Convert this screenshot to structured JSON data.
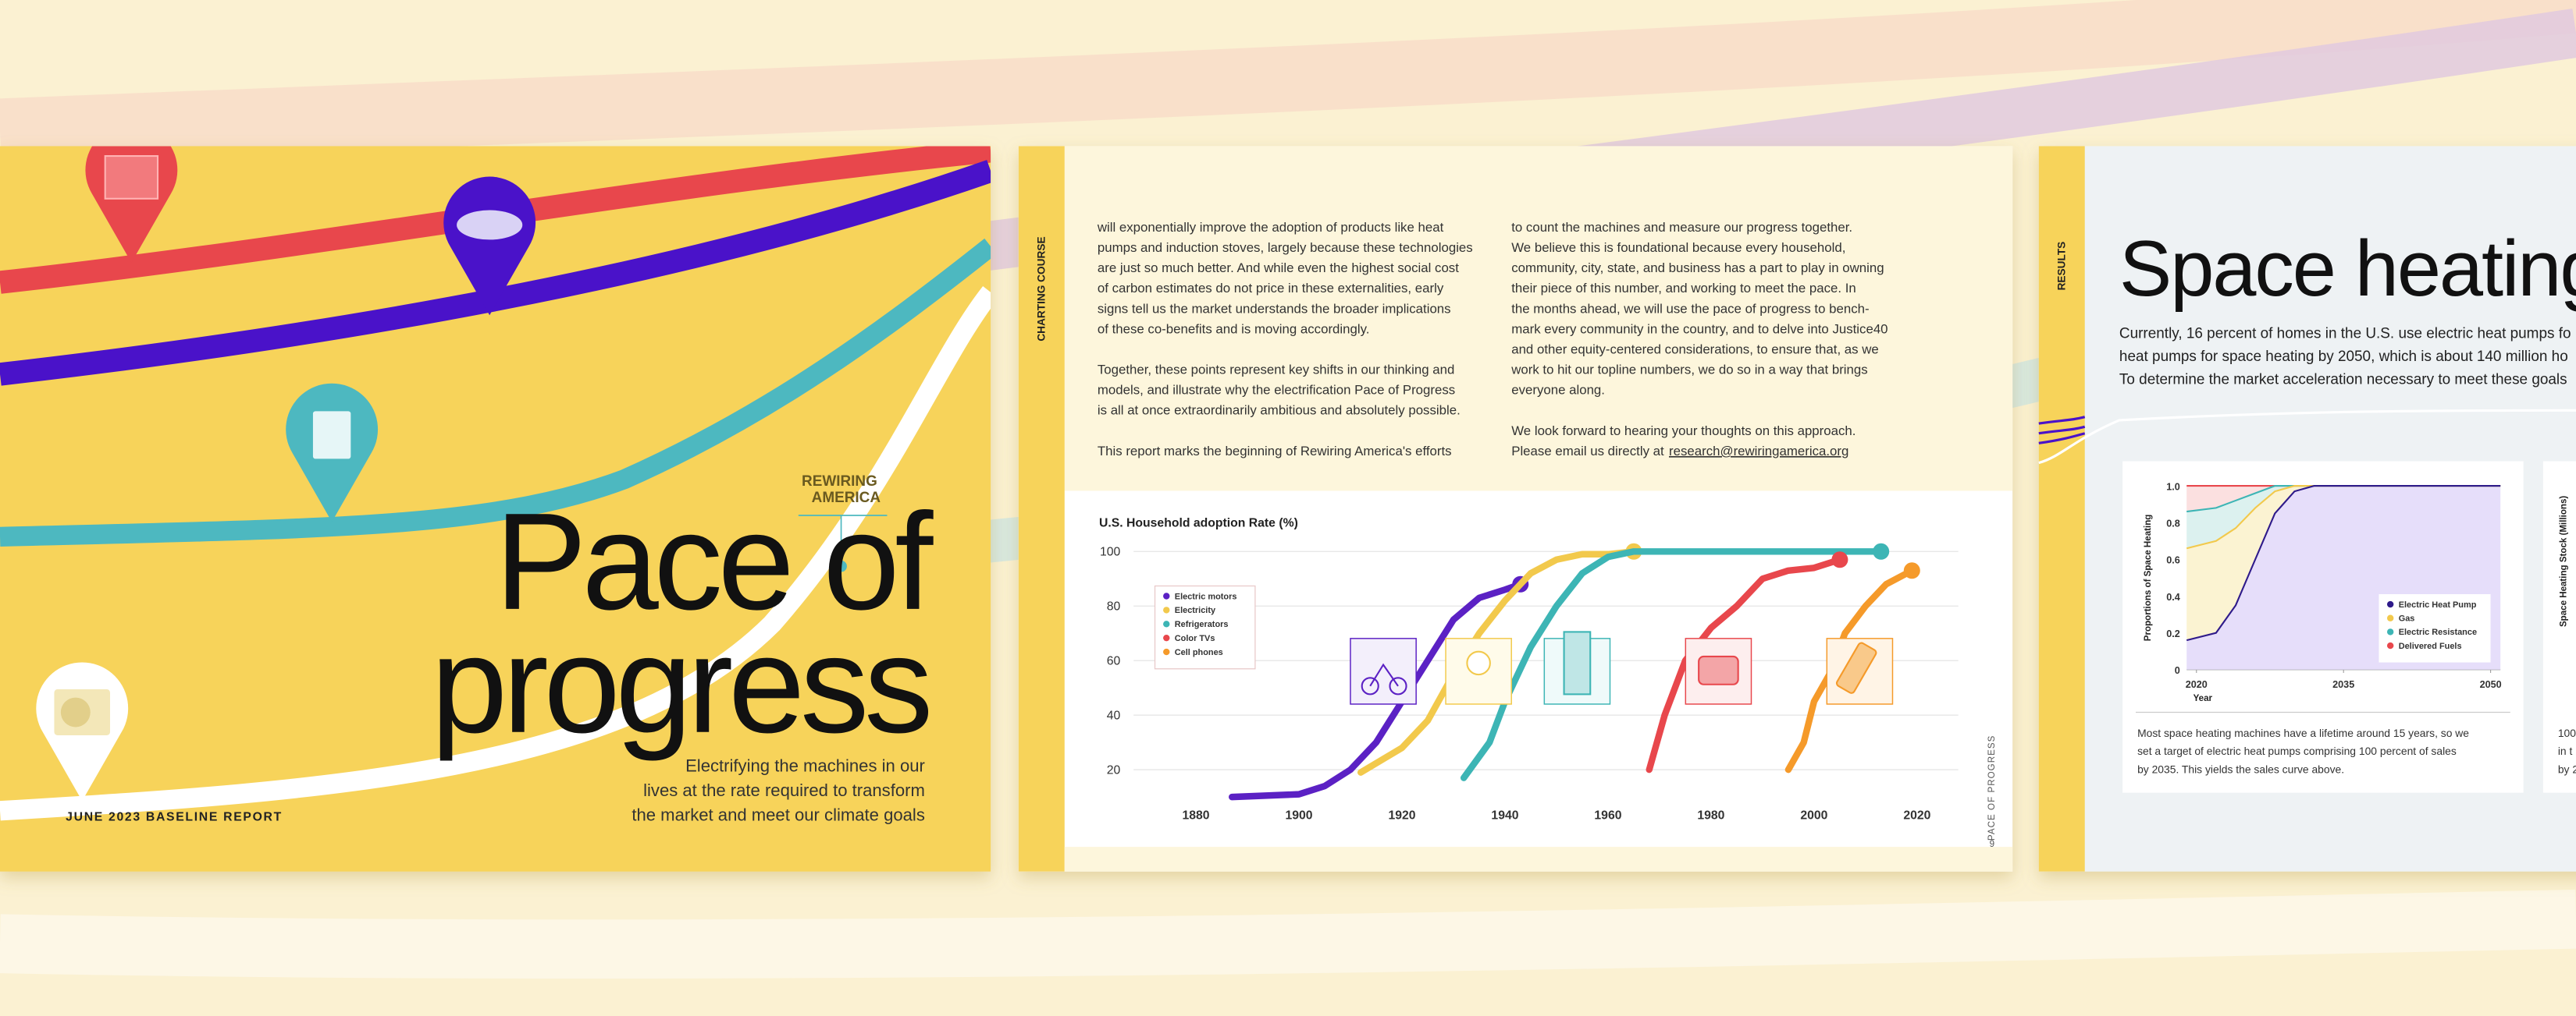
{
  "cover": {
    "title_lines": [
      "Pace of",
      "progress"
    ],
    "logo": [
      "REWIRING",
      "AMERICA"
    ],
    "subtitle_lines": [
      "Electrifying the machines in our",
      "lives at the rate required to transform",
      "the market and meet our climate goals"
    ],
    "report_label": "JUNE 2023 BASELINE REPORT"
  },
  "page2": {
    "section": "CHARTING COURSE",
    "column1": [
      [
        "will exponentially improve the adoption of products like heat",
        "pumps and induction stoves, largely because these technologies",
        "are just so much better. And while even the highest social cost",
        "of carbon estimates do not price in these externalities, early",
        "signs tell us the market understands the broader implications",
        "of these co-benefits and is moving accordingly."
      ],
      [
        "Together, these points represent key shifts in our thinking and",
        "models, and illustrate why the electrification Pace of Progress",
        "is all at once extraordinarily ambitious and absolutely possible."
      ],
      [
        "This report marks the beginning of Rewiring America's efforts"
      ]
    ],
    "column2": [
      [
        "to count the machines and measure our progress together.",
        "We believe this is foundational because every household,",
        "community, city, state, and business has a part to play in owning",
        "their piece of this number, and working to meet the pace. In",
        "the months ahead, we will use the pace of progress to bench-",
        "mark every community in the country, and to delve into Justice40",
        "and other equity-centered considerations, to ensure that, as we",
        "work to hit our topline numbers, we do so in a way that brings",
        "everyone along."
      ],
      [
        "We look forward to hearing your thoughts on this approach.",
        "Please email us directly at"
      ]
    ],
    "email": "research@rewiringamerica.org",
    "footer": "PACE OF PROGRESS",
    "page_number": 9
  },
  "page3": {
    "section": "RESULTS",
    "title": "Space heating",
    "intro_lines": [
      "Currently, 16 percent of homes in the U.S. use electric heat pumps fo",
      "heat pumps for space heating by 2050, which is about 140 million ho",
      "To determine the market acceleration necessary to meet these goals"
    ],
    "caption_lines": [
      "Most space heating machines have a lifetime around 15 years, so we",
      "set a target of electric heat pumps comprising 100 percent of sales",
      "by 2035. This yields the sales curve above."
    ],
    "next_card_ylabel": "Space Heating Stock (Millions)",
    "next_card_fragments": [
      "100",
      "in t",
      "by 2"
    ]
  },
  "chart_data": [
    {
      "type": "line",
      "title": "U.S. Household adoption Rate (%)",
      "xlim": [
        1873,
        2028
      ],
      "ylim": [
        10,
        100
      ],
      "xticks": [
        1880,
        1900,
        1920,
        1940,
        1960,
        1980,
        2000,
        2020
      ],
      "yticks": [
        20,
        40,
        60,
        80,
        100
      ],
      "grid": true,
      "legend": "upper left",
      "series": [
        {
          "name": "Electric motors",
          "color": "#5b21c4",
          "x": [
            1887,
            1900,
            1905,
            1910,
            1915,
            1920,
            1925,
            1930,
            1935,
            1940,
            1943
          ],
          "values": [
            10,
            11,
            14,
            20,
            30,
            45,
            60,
            75,
            83,
            86,
            88
          ]
        },
        {
          "name": "Electricity",
          "color": "#f2c94c",
          "x": [
            1912,
            1920,
            1925,
            1930,
            1935,
            1940,
            1945,
            1950,
            1955,
            1960,
            1965
          ],
          "values": [
            19,
            28,
            38,
            55,
            70,
            82,
            92,
            97,
            99,
            99,
            100
          ]
        },
        {
          "name": "Refrigerators",
          "color": "#3db5b5",
          "x": [
            1932,
            1937,
            1940,
            1945,
            1950,
            1955,
            1960,
            1965,
            2013
          ],
          "values": [
            17,
            30,
            45,
            65,
            80,
            92,
            98,
            100,
            100
          ]
        },
        {
          "name": "Color TVs",
          "color": "#e8474c",
          "x": [
            1968,
            1971,
            1975,
            1980,
            1985,
            1990,
            1995,
            2000,
            2005
          ],
          "values": [
            20,
            40,
            60,
            72,
            80,
            90,
            93,
            94,
            97
          ]
        },
        {
          "name": "Cell phones",
          "color": "#f59a2a",
          "x": [
            1995,
            1998,
            2000,
            2003,
            2006,
            2010,
            2014,
            2019
          ],
          "values": [
            20,
            30,
            45,
            55,
            70,
            80,
            88,
            93
          ]
        }
      ]
    },
    {
      "type": "stacked_area",
      "xlabel": "Year",
      "ylabel": "Proportions of Space Heating",
      "xlim": [
        2019,
        2051
      ],
      "ylim": [
        0,
        1
      ],
      "xticks": [
        2020,
        2035,
        2050
      ],
      "yticks": [
        0,
        0.2,
        0.4,
        0.6,
        0.8,
        {
          "value": 1,
          "label": "1.0"
        }
      ],
      "legend": "lower right",
      "x": [
        2019,
        2022,
        2024,
        2026,
        2028,
        2030,
        2032,
        2051
      ],
      "series": [
        {
          "name": "Electric Heat Pump",
          "color": "#2e1a8a",
          "fill": "#e6defa",
          "values": [
            0.16,
            0.2,
            0.35,
            0.6,
            0.85,
            0.97,
            1,
            1
          ]
        },
        {
          "name": "Gas",
          "color": "#f2c94c",
          "fill": "#fbf3d2",
          "values": [
            0.5,
            0.5,
            0.42,
            0.28,
            0.12,
            0.03,
            0,
            0
          ]
        },
        {
          "name": "Electric Resistance",
          "color": "#3db5b5",
          "fill": "#dcf1ef",
          "values": [
            0.2,
            0.18,
            0.15,
            0.08,
            0.03,
            0,
            0,
            0
          ]
        },
        {
          "name": "Delivered Fuels",
          "color": "#e8474c",
          "fill": "#fbe0e0",
          "values": [
            0.14,
            0.12,
            0.08,
            0.04,
            0,
            0,
            0,
            0
          ]
        }
      ]
    }
  ]
}
